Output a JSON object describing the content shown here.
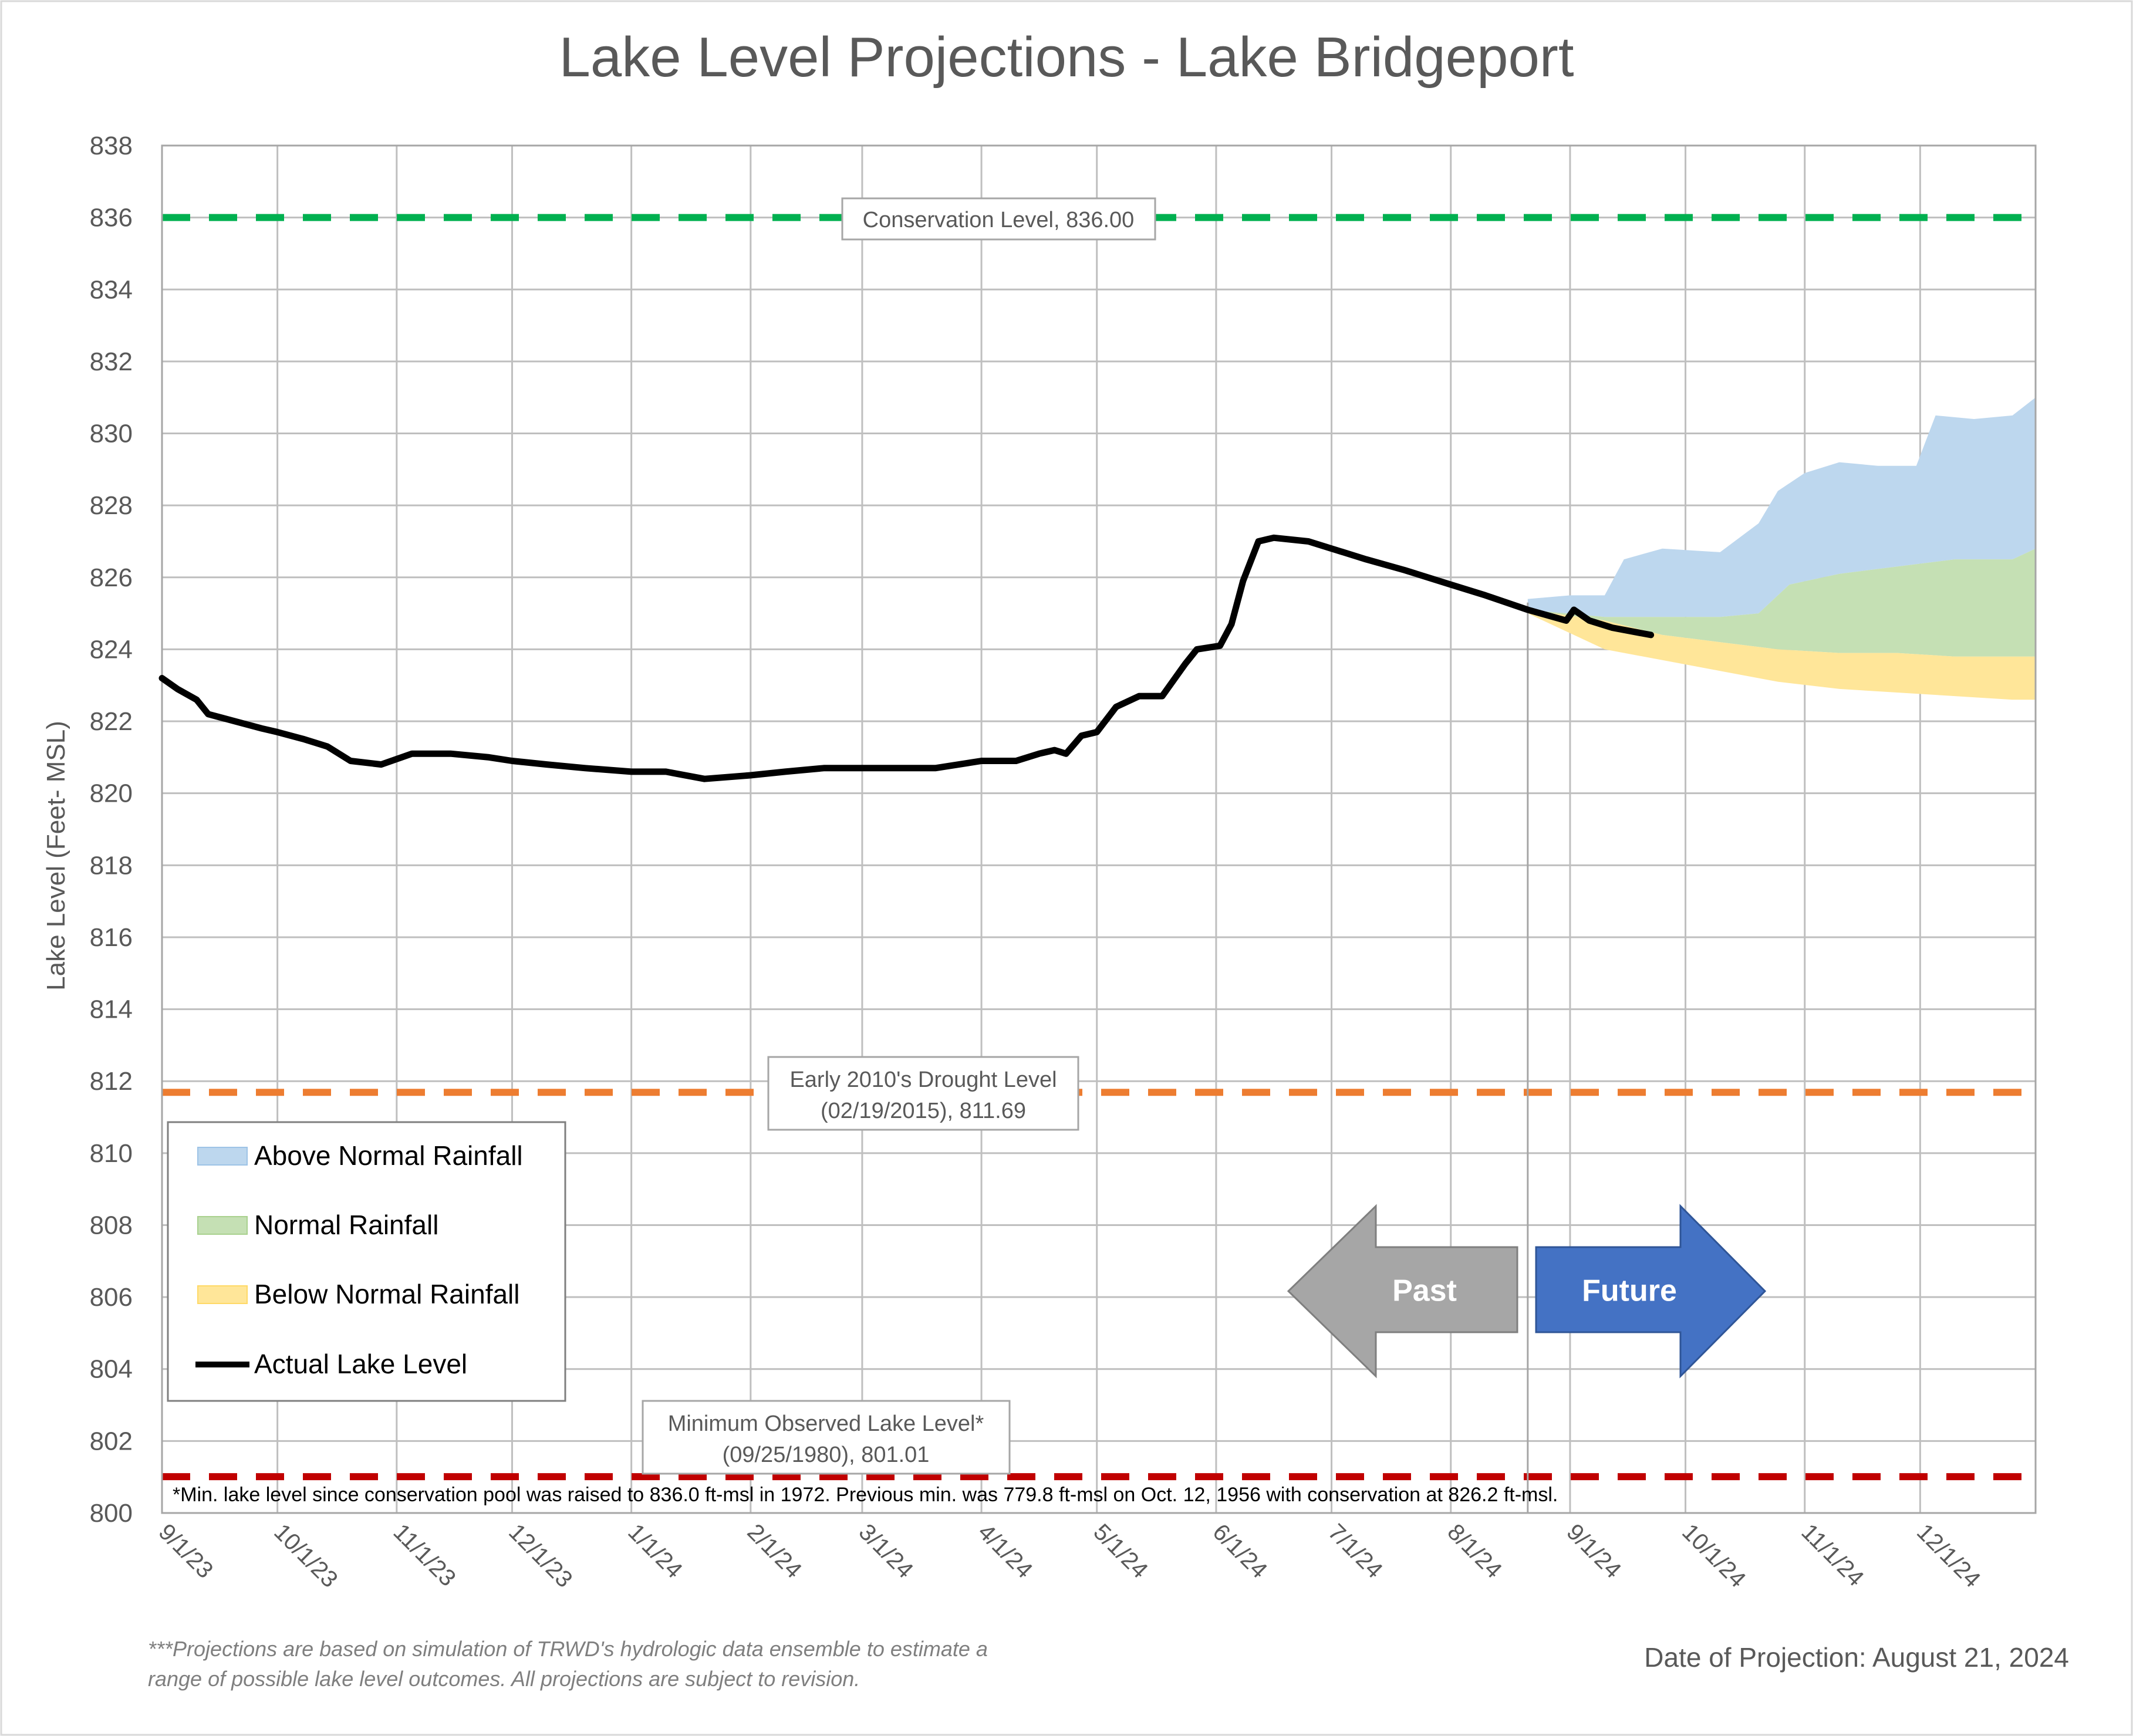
{
  "chart_data": {
    "type": "area",
    "title": "Lake Level Projections - Lake Bridgeport",
    "ylabel": "Lake Level (Feet- MSL)",
    "xlabel": "",
    "ylim": [
      800,
      838
    ],
    "y_ticks": [
      800,
      802,
      804,
      806,
      808,
      810,
      812,
      814,
      816,
      818,
      820,
      822,
      824,
      826,
      828,
      830,
      832,
      834,
      836,
      838
    ],
    "x_range": [
      "2023-09-01",
      "2024-12-31"
    ],
    "x_ticks": [
      {
        "date": "2023-09-01",
        "label": "9/1/23"
      },
      {
        "date": "2023-10-01",
        "label": "10/1/23"
      },
      {
        "date": "2023-11-01",
        "label": "11/1/23"
      },
      {
        "date": "2023-12-01",
        "label": "12/1/23"
      },
      {
        "date": "2024-01-01",
        "label": "1/1/24"
      },
      {
        "date": "2024-02-01",
        "label": "2/1/24"
      },
      {
        "date": "2024-03-01",
        "label": "3/1/24"
      },
      {
        "date": "2024-04-01",
        "label": "4/1/24"
      },
      {
        "date": "2024-05-01",
        "label": "5/1/24"
      },
      {
        "date": "2024-06-01",
        "label": "6/1/24"
      },
      {
        "date": "2024-07-01",
        "label": "7/1/24"
      },
      {
        "date": "2024-08-01",
        "label": "8/1/24"
      },
      {
        "date": "2024-09-01",
        "label": "9/1/24"
      },
      {
        "date": "2024-10-01",
        "label": "10/1/24"
      },
      {
        "date": "2024-11-01",
        "label": "11/1/24"
      },
      {
        "date": "2024-12-01",
        "label": "12/1/24"
      }
    ],
    "grid": "horizontal",
    "projection_date": "2024-08-21",
    "series": [
      {
        "name": "Actual Lake Level",
        "type": "line",
        "color": "#000000",
        "points": [
          [
            "2023-09-01",
            823.2
          ],
          [
            "2023-09-05",
            822.9
          ],
          [
            "2023-09-10",
            822.6
          ],
          [
            "2023-09-13",
            822.2
          ],
          [
            "2023-09-20",
            822.0
          ],
          [
            "2023-09-27",
            821.8
          ],
          [
            "2023-10-01",
            821.7
          ],
          [
            "2023-10-08",
            821.5
          ],
          [
            "2023-10-14",
            821.3
          ],
          [
            "2023-10-20",
            820.9
          ],
          [
            "2023-10-28",
            820.8
          ],
          [
            "2023-11-05",
            821.1
          ],
          [
            "2023-11-15",
            821.1
          ],
          [
            "2023-11-25",
            821.0
          ],
          [
            "2023-12-01",
            820.9
          ],
          [
            "2023-12-10",
            820.8
          ],
          [
            "2023-12-20",
            820.7
          ],
          [
            "2024-01-01",
            820.6
          ],
          [
            "2024-01-10",
            820.6
          ],
          [
            "2024-01-20",
            820.4
          ],
          [
            "2024-02-01",
            820.5
          ],
          [
            "2024-02-10",
            820.6
          ],
          [
            "2024-02-20",
            820.7
          ],
          [
            "2024-03-01",
            820.7
          ],
          [
            "2024-03-10",
            820.7
          ],
          [
            "2024-03-20",
            820.7
          ],
          [
            "2024-04-01",
            820.9
          ],
          [
            "2024-04-10",
            820.9
          ],
          [
            "2024-04-16",
            821.1
          ],
          [
            "2024-04-20",
            821.2
          ],
          [
            "2024-04-23",
            821.1
          ],
          [
            "2024-04-27",
            821.6
          ],
          [
            "2024-05-01",
            821.7
          ],
          [
            "2024-05-06",
            822.4
          ],
          [
            "2024-05-12",
            822.7
          ],
          [
            "2024-05-18",
            822.7
          ],
          [
            "2024-05-24",
            823.6
          ],
          [
            "2024-05-27",
            824.0
          ],
          [
            "2024-06-02",
            824.1
          ],
          [
            "2024-06-05",
            824.7
          ],
          [
            "2024-06-08",
            825.9
          ],
          [
            "2024-06-12",
            827.0
          ],
          [
            "2024-06-16",
            827.1
          ],
          [
            "2024-06-25",
            827.0
          ],
          [
            "2024-07-01",
            826.8
          ],
          [
            "2024-07-10",
            826.5
          ],
          [
            "2024-07-20",
            826.2
          ],
          [
            "2024-08-01",
            825.8
          ],
          [
            "2024-08-10",
            825.5
          ],
          [
            "2024-08-21",
            825.1
          ],
          [
            "2024-08-31",
            824.8
          ],
          [
            "2024-09-02",
            825.1
          ],
          [
            "2024-09-06",
            824.8
          ],
          [
            "2024-09-12",
            824.6
          ],
          [
            "2024-09-22",
            824.4
          ]
        ]
      },
      {
        "name": "Above Normal Rainfall",
        "type": "area",
        "color": "#BDD7EE",
        "points": [
          [
            "2024-08-21",
            825.4
          ],
          [
            "2024-09-01",
            825.5
          ],
          [
            "2024-09-10",
            825.5
          ],
          [
            "2024-09-15",
            826.5
          ],
          [
            "2024-09-25",
            826.8
          ],
          [
            "2024-10-10",
            826.7
          ],
          [
            "2024-10-20",
            827.5
          ],
          [
            "2024-10-25",
            828.4
          ],
          [
            "2024-11-01",
            828.9
          ],
          [
            "2024-11-10",
            829.2
          ],
          [
            "2024-11-20",
            829.1
          ],
          [
            "2024-11-30",
            829.1
          ],
          [
            "2024-12-05",
            830.5
          ],
          [
            "2024-12-15",
            830.4
          ],
          [
            "2024-12-25",
            830.5
          ],
          [
            "2024-12-31",
            831.0
          ]
        ]
      },
      {
        "name": "Normal Rainfall",
        "type": "area",
        "color": "#C5E0B4",
        "points": [
          [
            "2024-08-21",
            825.1
          ],
          [
            "2024-09-10",
            824.9
          ],
          [
            "2024-09-25",
            824.9
          ],
          [
            "2024-10-10",
            824.9
          ],
          [
            "2024-10-20",
            825.0
          ],
          [
            "2024-10-28",
            825.8
          ],
          [
            "2024-11-10",
            826.1
          ],
          [
            "2024-11-25",
            826.3
          ],
          [
            "2024-12-10",
            826.5
          ],
          [
            "2024-12-25",
            826.5
          ],
          [
            "2024-12-31",
            826.8
          ]
        ]
      },
      {
        "name": "Below Normal Rainfall",
        "type": "area",
        "color": "#FFE699",
        "points": [
          [
            "2024-08-21",
            825.0
          ],
          [
            "2024-09-10",
            824.6
          ],
          [
            "2024-09-25",
            824.3
          ],
          [
            "2024-10-10",
            824.0
          ],
          [
            "2024-10-25",
            823.7
          ],
          [
            "2024-11-10",
            823.5
          ],
          [
            "2024-11-25",
            823.4
          ],
          [
            "2024-12-10",
            823.3
          ],
          [
            "2024-12-25",
            823.2
          ],
          [
            "2024-12-31",
            823.2
          ]
        ]
      },
      {
        "name": "Below Normal Rainfall (lower)",
        "legend": false,
        "type": "boundary",
        "points": [
          [
            "2024-08-21",
            825.0
          ],
          [
            "2024-09-10",
            824.6
          ],
          [
            "2024-09-25",
            824.3
          ],
          [
            "2024-10-10",
            824.0
          ],
          [
            "2024-10-25",
            823.7
          ],
          [
            "2024-11-10",
            823.5
          ],
          [
            "2024-11-25",
            823.4
          ],
          [
            "2024-12-10",
            823.3
          ],
          [
            "2024-12-25",
            823.2
          ],
          [
            "2024-12-31",
            823.2
          ]
        ]
      },
      {
        "name": "Normal Rainfall (lower)",
        "legend": false,
        "type": "boundary",
        "points": [
          [
            "2024-08-21",
            825.1
          ],
          [
            "2024-09-10",
            824.8
          ],
          [
            "2024-09-25",
            824.4
          ],
          [
            "2024-10-10",
            824.2
          ],
          [
            "2024-10-25",
            824.0
          ],
          [
            "2024-11-10",
            823.9
          ],
          [
            "2024-11-25",
            823.9
          ],
          [
            "2024-12-10",
            823.8
          ],
          [
            "2024-12-25",
            823.8
          ],
          [
            "2024-12-31",
            823.8
          ]
        ]
      }
    ],
    "reference_lines": [
      {
        "name": "conservation",
        "value": 836.0,
        "color": "#00B050",
        "label": "Conservation Level, 836.00"
      },
      {
        "name": "drought",
        "value": 811.69,
        "color": "#ED7D31",
        "label": "Early 2010's Drought Level (02/19/2015), 811.69"
      },
      {
        "name": "minimum",
        "value": 801.01,
        "color": "#C00000",
        "label": "Minimum Observed Lake Level* (09/25/1980), 801.01"
      }
    ]
  },
  "labels": {
    "title": "Lake Level Projections - Lake Bridgeport",
    "ylabel": "Lake Level (Feet- MSL)",
    "conservation_label": "Conservation Level, 836.00",
    "drought_label_1": "Early 2010's Drought Level",
    "drought_label_2": "(02/19/2015), 811.69",
    "minimum_label_1": "Minimum Observed Lake Level*",
    "minimum_label_2": "(09/25/1980), 801.01",
    "min_footnote": "*Min. lake level since conservation pool was raised to 836.0 ft-msl in 1972.  Previous min. was 779.8 ft-msl on Oct. 12, 1956 with conservation at 826.2 ft-msl.",
    "past_arrow": "Past",
    "future_arrow": "Future",
    "footer_note_1": "***Projections are based on simulation of TRWD's hydrologic data ensemble to estimate a",
    "footer_note_2": "range of possible lake level outcomes.  All projections are subject to revision.",
    "projection_date": "Date of Projection: August 21, 2024"
  },
  "legend": {
    "items": [
      {
        "label": "Above Normal Rainfall",
        "color": "#BDD7EE",
        "kind": "area"
      },
      {
        "label": "Normal Rainfall",
        "color": "#C5E0B4",
        "kind": "area"
      },
      {
        "label": "Below Normal Rainfall",
        "color": "#FFE699",
        "kind": "area"
      },
      {
        "label": "Actual Lake Level",
        "color": "#000000",
        "kind": "line"
      }
    ]
  },
  "colors": {
    "past_arrow": "#A6A6A6",
    "future_arrow": "#4472C4",
    "grid": "#BFBFBF"
  }
}
